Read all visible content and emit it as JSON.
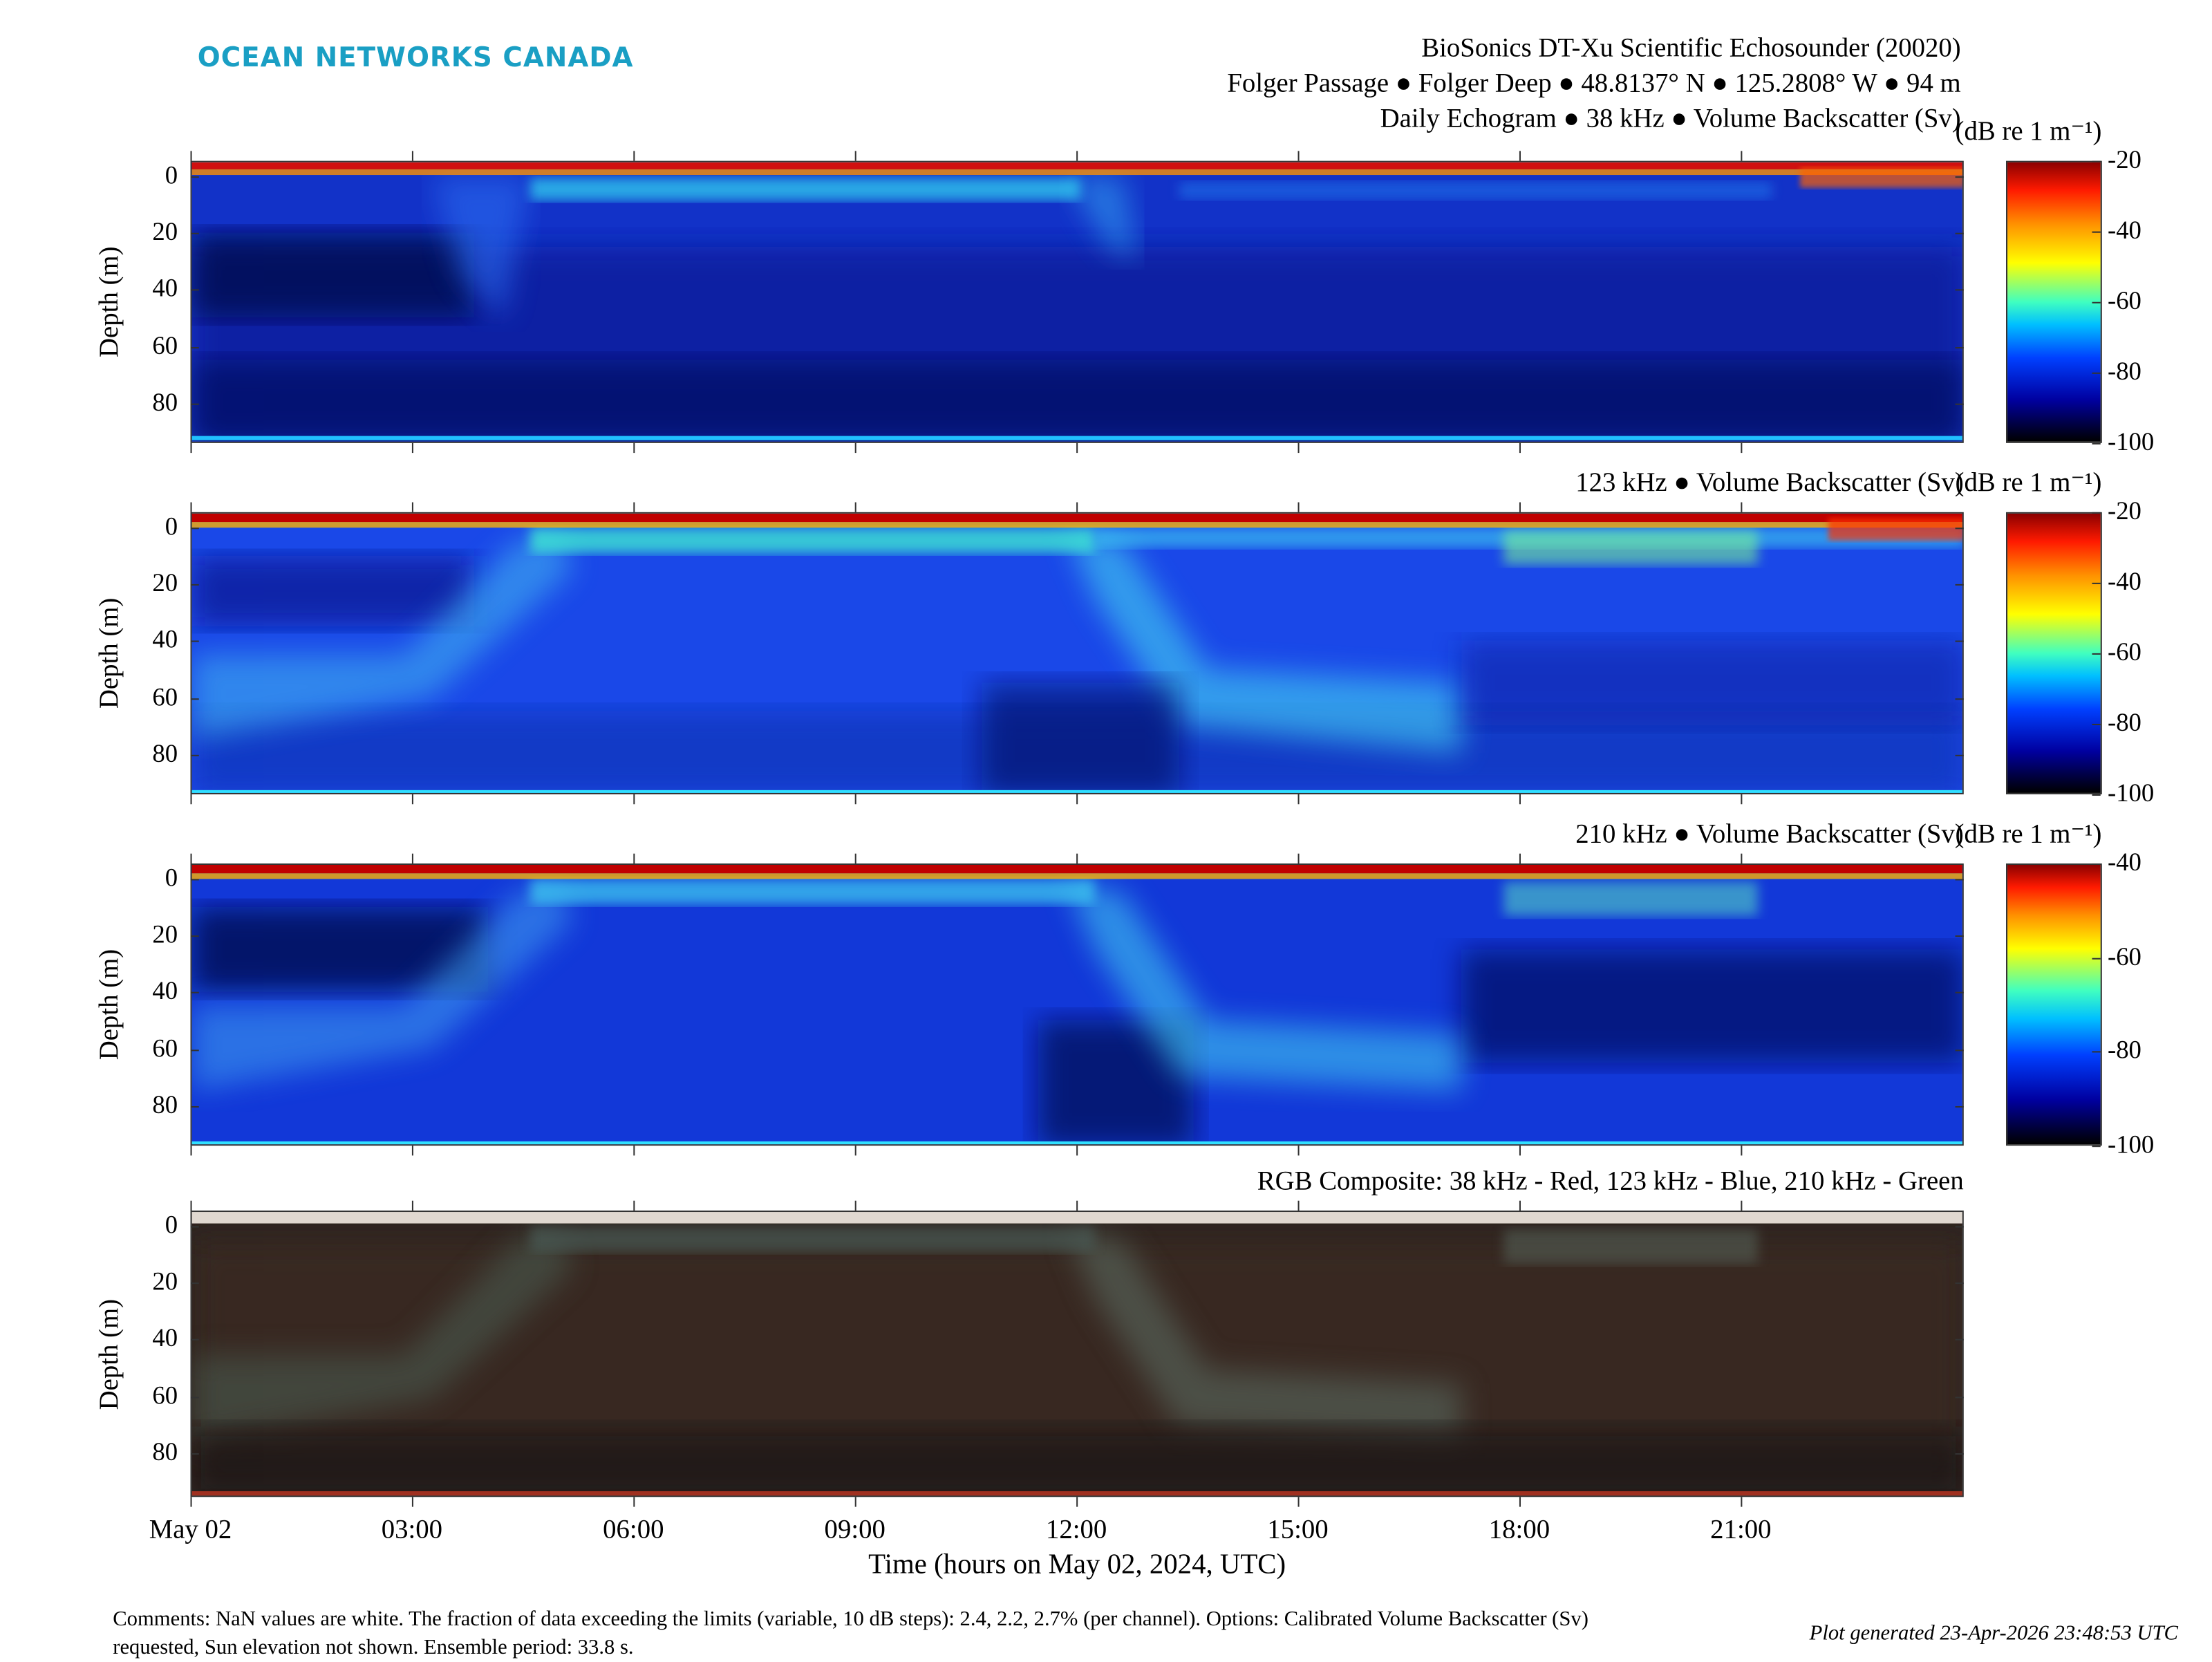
{
  "logo": "OCEAN NETWORKS CANADA",
  "header": {
    "line1": "BioSonics DT-Xu Scientific Echosounder (20020)",
    "line2": "Folger Passage ● Folger Deep ● 48.8137° N ● 125.2808° W ● 94 m",
    "line3": "Daily Echogram ● 38 kHz ● Volume Backscatter (Sv)"
  },
  "colors": {
    "logo": "#1a9fc4"
  },
  "panels": [
    {
      "label": "Daily Echogram ● 38 kHz ● Volume Backscatter (Sv)",
      "ylabel": "Depth (m)",
      "cbar_label": "(dB re 1 m⁻¹)",
      "cbar_range": [
        -100,
        -20
      ],
      "cbar_ticks": [
        "-20",
        "-40",
        "-60",
        "-80",
        "-100"
      ]
    },
    {
      "label": "123 kHz ● Volume Backscatter (Sv)",
      "ylabel": "Depth (m)",
      "cbar_label": "(dB re 1 m⁻¹)",
      "cbar_range": [
        -100,
        -20
      ],
      "cbar_ticks": [
        "-20",
        "-40",
        "-60",
        "-80",
        "-100"
      ]
    },
    {
      "label": "210 kHz ● Volume Backscatter (Sv)",
      "ylabel": "Depth (m)",
      "cbar_label": "(dB re 1 m⁻¹)",
      "cbar_range": [
        -100,
        -40
      ],
      "cbar_ticks": [
        "-40",
        "-60",
        "-80",
        "-100"
      ]
    },
    {
      "label": "RGB Composite: 38 kHz - Red, 123 kHz - Blue, 210 kHz - Green",
      "ylabel": "Depth (m)"
    }
  ],
  "depth_ticks": [
    "0",
    "20",
    "40",
    "60",
    "80"
  ],
  "x_ticks": [
    "May 02",
    "03:00",
    "06:00",
    "09:00",
    "12:00",
    "15:00",
    "18:00",
    "21:00"
  ],
  "xlabel": "Time (hours on May 02, 2024, UTC)",
  "comments": "Comments: NaN values are white. The fraction of data exceeding the limits (variable, 10 dB steps): 2.4, 2.2, 2.7% (per channel). Options: Calibrated Volume Backscatter (Sv) requested, Sun elevation not shown. Ensemble period: 33.8 s.",
  "generated": "Plot generated 23-Apr-2026 23:48:53 UTC",
  "chart_data": {
    "type": "heatmap",
    "title": "BioSonics DT-Xu Scientific Echosounder (20020)",
    "xlabel": "Time (hours on May 02, 2024, UTC)",
    "ylabel": "Depth (m)",
    "xlim_hours": [
      0,
      24
    ],
    "ylim": [
      -5.5,
      94
    ],
    "y_reversed": true,
    "x_tick_hours": [
      0,
      3,
      6,
      9,
      12,
      15,
      18,
      21
    ],
    "depth_tick_values": [
      0,
      20,
      40,
      60,
      80
    ],
    "series": [
      {
        "name": "38 kHz",
        "clim": [
          -100,
          -20
        ]
      },
      {
        "name": "123 kHz",
        "clim": [
          -100,
          -20
        ]
      },
      {
        "name": "210 kHz",
        "clim": [
          -100,
          -40
        ]
      },
      {
        "name": "RGB Composite"
      }
    ]
  }
}
